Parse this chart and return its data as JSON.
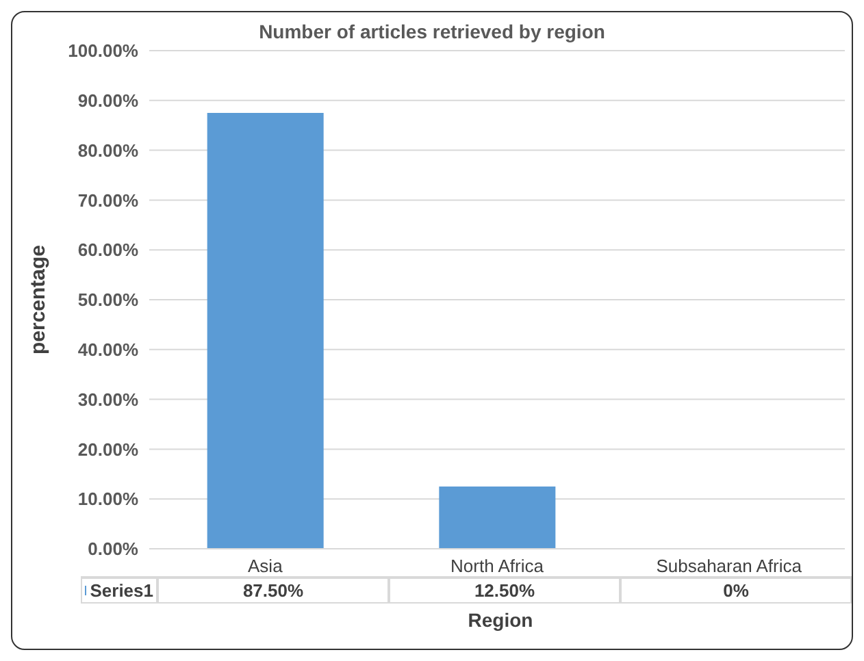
{
  "chart_data": {
    "type": "bar",
    "title": "Number of articles retrieved by region",
    "xlabel": "Region",
    "ylabel": "percentage",
    "categories": [
      "Asia",
      "North Africa",
      "Subsaharan Africa"
    ],
    "series": [
      {
        "name": "Series1",
        "color": "#5b9bd5",
        "values": [
          87.5,
          12.5,
          0
        ],
        "value_labels": [
          "87.50%",
          "12.50%",
          "0%"
        ]
      }
    ],
    "ylim": [
      0,
      100
    ],
    "yticks": [
      {
        "value": 0,
        "label": "0.00%"
      },
      {
        "value": 10,
        "label": "10.00%"
      },
      {
        "value": 20,
        "label": "20.00%"
      },
      {
        "value": 30,
        "label": "30.00%"
      },
      {
        "value": 40,
        "label": "40.00%"
      },
      {
        "value": 50,
        "label": "50.00%"
      },
      {
        "value": 60,
        "label": "60.00%"
      },
      {
        "value": 70,
        "label": "70.00%"
      },
      {
        "value": 80,
        "label": "80.00%"
      },
      {
        "value": 90,
        "label": "90.00%"
      },
      {
        "value": 100,
        "label": "100.00%"
      }
    ],
    "grid": "y",
    "legend": "bottom"
  }
}
